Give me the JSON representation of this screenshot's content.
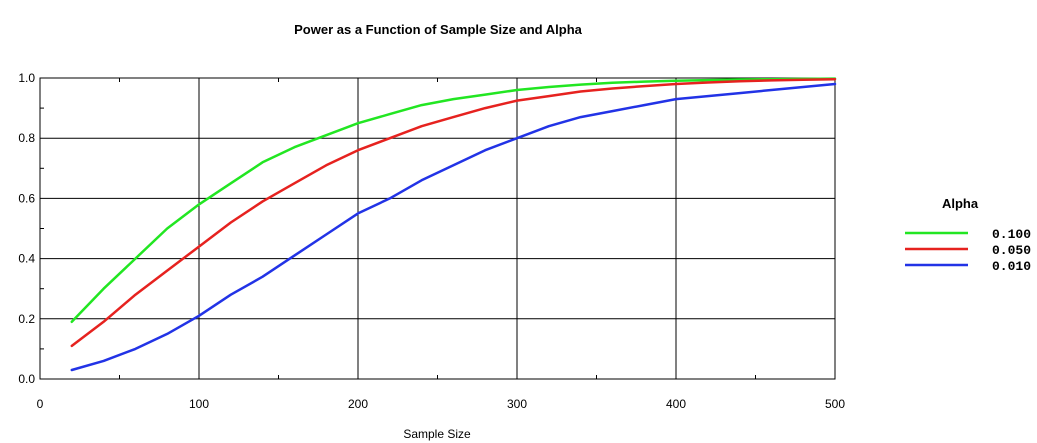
{
  "chart_data": {
    "type": "line",
    "title": "Power as a Function of Sample Size and Alpha",
    "xlabel": "Sample Size",
    "ylabel": "",
    "xlim": [
      0,
      500
    ],
    "ylim": [
      0.0,
      1.0
    ],
    "xticks": [
      "0",
      "100",
      "200",
      "300",
      "400",
      "500"
    ],
    "yticks": [
      "0.0",
      "0.2",
      "0.4",
      "0.6",
      "0.8",
      "1.0"
    ],
    "grid": true,
    "legend": {
      "title": "Alpha",
      "position": "right"
    },
    "series": [
      {
        "name": "0.100",
        "color": "#22e622",
        "x": [
          20,
          40,
          60,
          80,
          100,
          120,
          140,
          160,
          180,
          200,
          220,
          240,
          260,
          280,
          300,
          320,
          340,
          360,
          380,
          400,
          420,
          440,
          460,
          480,
          500
        ],
        "y": [
          0.19,
          0.3,
          0.4,
          0.5,
          0.58,
          0.65,
          0.72,
          0.77,
          0.81,
          0.85,
          0.88,
          0.91,
          0.93,
          0.945,
          0.96,
          0.97,
          0.978,
          0.984,
          0.988,
          0.991,
          0.993,
          0.995,
          0.996,
          0.997,
          0.998
        ]
      },
      {
        "name": "0.050",
        "color": "#e6221f",
        "x": [
          20,
          40,
          60,
          80,
          100,
          120,
          140,
          160,
          180,
          200,
          220,
          240,
          260,
          280,
          300,
          320,
          340,
          360,
          380,
          400,
          420,
          440,
          460,
          480,
          500
        ],
        "y": [
          0.11,
          0.19,
          0.28,
          0.36,
          0.44,
          0.52,
          0.59,
          0.65,
          0.71,
          0.76,
          0.8,
          0.84,
          0.87,
          0.9,
          0.925,
          0.94,
          0.955,
          0.965,
          0.973,
          0.98,
          0.985,
          0.989,
          0.992,
          0.994,
          0.996
        ]
      },
      {
        "name": "0.010",
        "color": "#2233e6",
        "x": [
          20,
          40,
          60,
          80,
          100,
          120,
          140,
          160,
          180,
          200,
          220,
          240,
          260,
          280,
          300,
          320,
          340,
          360,
          380,
          400,
          420,
          440,
          460,
          480,
          500
        ],
        "y": [
          0.03,
          0.06,
          0.1,
          0.15,
          0.21,
          0.28,
          0.34,
          0.41,
          0.48,
          0.55,
          0.6,
          0.66,
          0.71,
          0.76,
          0.8,
          0.84,
          0.87,
          0.89,
          0.91,
          0.93,
          0.94,
          0.95,
          0.96,
          0.97,
          0.98
        ]
      }
    ]
  }
}
